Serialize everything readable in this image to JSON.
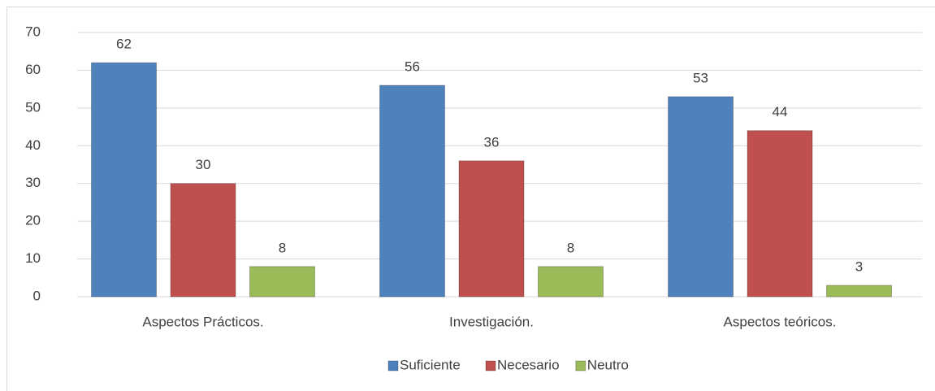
{
  "chart_data": {
    "type": "bar",
    "categories": [
      "Aspectos Prácticos.",
      "Investigación.",
      "Aspectos teóricos."
    ],
    "series": [
      {
        "name": "Suficiente",
        "color": "#4f81bd",
        "values": [
          62,
          56,
          53
        ]
      },
      {
        "name": "Necesario",
        "color": "#c0504d",
        "values": [
          30,
          36,
          44
        ]
      },
      {
        "name": "Neutro",
        "color": "#9bbb59",
        "values": [
          8,
          8,
          3
        ]
      }
    ],
    "ylim": [
      0,
      70
    ],
    "yticks": [
      0,
      10,
      20,
      30,
      40,
      50,
      60,
      70
    ],
    "grid": true,
    "legend": "bottom"
  }
}
